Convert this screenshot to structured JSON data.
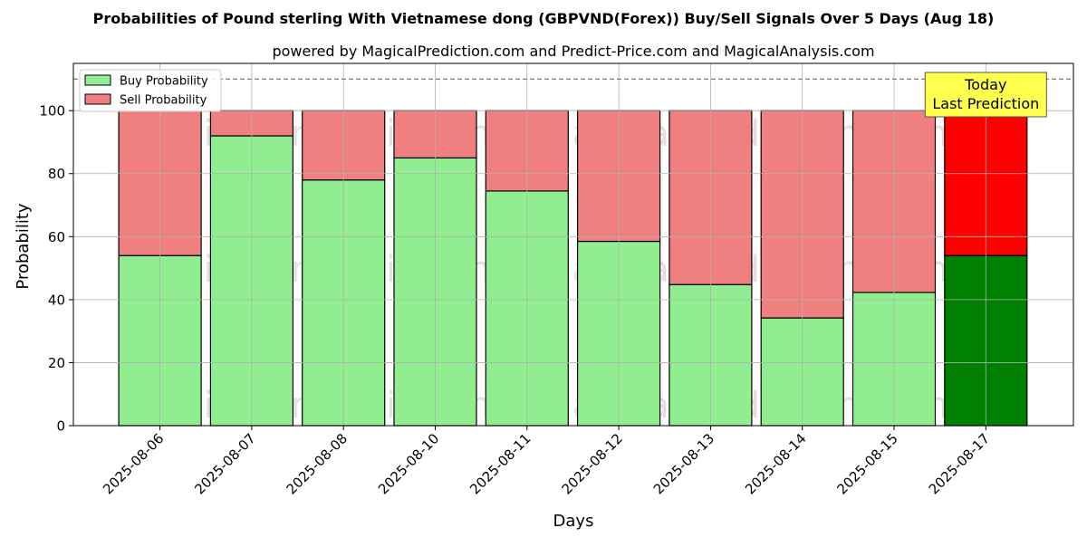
{
  "chart_data": {
    "type": "bar",
    "stacked": true,
    "title": "Probabilities of Pound sterling With Vietnamese dong (GBPVND(Forex)) Buy/Sell Signals Over 5 Days (Aug 18)",
    "subtitle": "powered by MagicalPrediction.com and Predict-Price.com and MagicalAnalysis.com",
    "xlabel": "Days",
    "ylabel": "Probability",
    "ylim": [
      0,
      115
    ],
    "yticks": [
      0,
      20,
      40,
      60,
      80,
      100
    ],
    "grid": true,
    "legend_position": "top-left",
    "reference_line": {
      "y": 110,
      "style": "dashed",
      "color": "#808080"
    },
    "categories": [
      "2025-08-06",
      "2025-08-07",
      "2025-08-08",
      "2025-08-10",
      "2025-08-11",
      "2025-08-12",
      "2025-08-13",
      "2025-08-14",
      "2025-08-15",
      "2025-08-17"
    ],
    "series": [
      {
        "name": "Buy Probability",
        "color": "#90ee90",
        "values": [
          54,
          92,
          78,
          85,
          74.5,
          58.5,
          44.8,
          34.2,
          42.3,
          54
        ]
      },
      {
        "name": "Sell Probability",
        "color": "#f08080",
        "values": [
          46,
          8,
          22,
          15,
          25.5,
          41.5,
          55.2,
          65.8,
          57.7,
          46
        ]
      }
    ],
    "highlight": {
      "index": 9,
      "buy_color": "#008000",
      "sell_color": "#ff0000",
      "annotation": [
        "Today",
        "Last Prediction"
      ],
      "annotation_bg": "#ffff4d"
    },
    "watermarks": [
      "MagicalAnalysis.com",
      "MagicalPrediction.com"
    ]
  }
}
